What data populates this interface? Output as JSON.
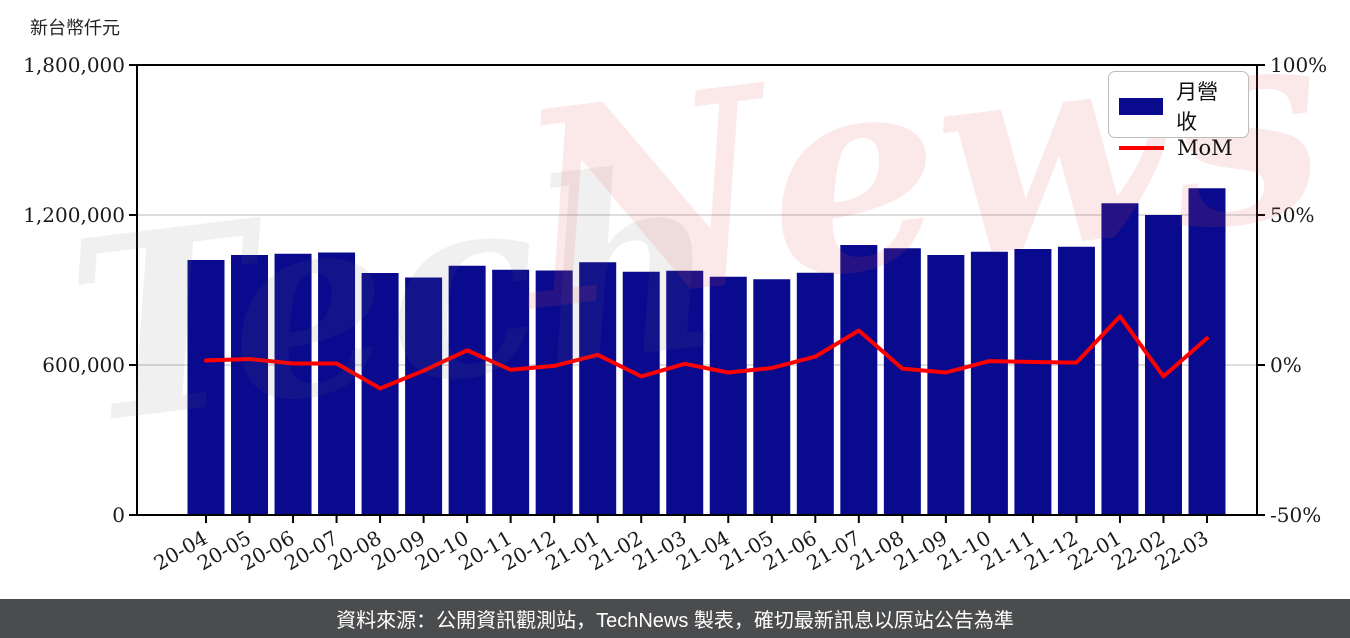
{
  "chart": {
    "unit_label": "新台幣仟元"
  },
  "legend": {
    "bar_label": "月營收",
    "line_label": "MoM"
  },
  "watermark": {
    "part1": "Tech",
    "part2": "News"
  },
  "footer": {
    "source_text": "資料來源：公開資訊觀測站，TechNews 製表，確切最新訊息以原站公告為準"
  },
  "colors": {
    "bar": "#0a0a8e",
    "line": "#ff0000",
    "grid": "#d2d2d2",
    "axis": "#000000",
    "tick_label": "#1a1a1a",
    "footer_bg": "#4b4c4e",
    "footer_text": "#ffffff",
    "watermark_pink": "rgba(224,80,80,0.13)",
    "watermark_gray": "rgba(110,110,110,0.10)"
  },
  "chart_data": {
    "type": "bar+line",
    "title": "",
    "categories": [
      "20-04",
      "20-05",
      "20-06",
      "20-07",
      "20-08",
      "20-09",
      "20-10",
      "20-11",
      "20-12",
      "21-01",
      "21-02",
      "21-03",
      "21-04",
      "21-05",
      "21-06",
      "21-07",
      "21-08",
      "21-09",
      "21-10",
      "21-11",
      "21-12",
      "22-01",
      "22-02",
      "22-03"
    ],
    "series": [
      {
        "name": "月營收",
        "type": "bar",
        "axis": "left",
        "unit": "新台幣仟元",
        "values": [
          1020000,
          1040000,
          1045000,
          1050000,
          968000,
          950000,
          997000,
          981000,
          978000,
          1011000,
          973000,
          977000,
          953000,
          943000,
          969000,
          1080000,
          1067000,
          1040000,
          1053000,
          1064000,
          1073000,
          1247000,
          1200000,
          1307000
        ]
      },
      {
        "name": "MoM",
        "type": "line",
        "axis": "right",
        "unit": "%",
        "values": [
          1.5,
          2.0,
          0.5,
          0.5,
          -7.8,
          -1.9,
          4.9,
          -1.6,
          -0.3,
          3.4,
          -3.8,
          0.4,
          -2.5,
          -1.0,
          2.8,
          11.5,
          -1.2,
          -2.5,
          1.3,
          1.0,
          0.8,
          16.2,
          -3.8,
          8.9
        ]
      }
    ],
    "left_axis": {
      "title": "新台幣仟元",
      "range": [
        0,
        1800000
      ],
      "tick_values": [
        0,
        600000,
        1200000,
        1800000
      ],
      "tick_labels": [
        "0",
        "600,000",
        "1,200,000",
        "1,800,000"
      ]
    },
    "right_axis": {
      "range": [
        -50,
        100
      ],
      "tick_values": [
        -50,
        0,
        50,
        100
      ],
      "tick_labels": [
        "-50%",
        "0%",
        "50%",
        "100%"
      ]
    },
    "x_tick_rotation_deg": 30,
    "grid": "horizontal-inner",
    "legend_position": "top-right"
  }
}
